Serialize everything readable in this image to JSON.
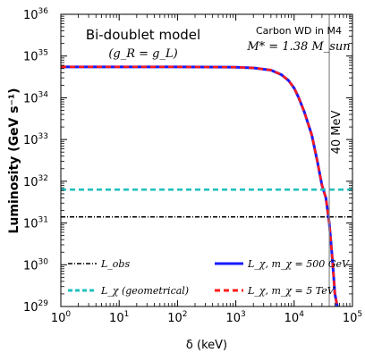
{
  "chart_data": {
    "type": "line",
    "title": "Bi-doublet model",
    "subtitle": "(g_R = g_L)",
    "xlabel": "δ (keV)",
    "ylabel": "Luminosity (GeV s⁻¹)",
    "x_scale": "log",
    "y_scale": "log",
    "xlim": [
      1,
      100000
    ],
    "ylim": [
      1e+29,
      1e+36
    ],
    "x_ticks": [
      {
        "base": "10",
        "exp": "0",
        "value": 1
      },
      {
        "base": "10",
        "exp": "1",
        "value": 10
      },
      {
        "base": "10",
        "exp": "2",
        "value": 100
      },
      {
        "base": "10",
        "exp": "3",
        "value": 1000
      },
      {
        "base": "10",
        "exp": "4",
        "value": 10000
      },
      {
        "base": "10",
        "exp": "5",
        "value": 100000
      }
    ],
    "y_ticks": [
      {
        "base": "10",
        "exp": "29",
        "value": 1e+29
      },
      {
        "base": "10",
        "exp": "30",
        "value": 1e+30
      },
      {
        "base": "10",
        "exp": "31",
        "value": 1e+31
      },
      {
        "base": "10",
        "exp": "32",
        "value": 1e+32
      },
      {
        "base": "10",
        "exp": "33",
        "value": 1e+33
      },
      {
        "base": "10",
        "exp": "34",
        "value": 1e+34
      },
      {
        "base": "10",
        "exp": "35",
        "value": 1e+35
      },
      {
        "base": "10",
        "exp": "36",
        "value": 1e+36
      }
    ],
    "annotations": {
      "top_right_line1": "Carbon WD in M4",
      "top_right_line2": "M* = 1.38 M_sun",
      "vline_label": "40 MeV",
      "vline_x": 40000
    },
    "series": [
      {
        "name": "L_obs",
        "style": "dash-dot",
        "color": "#000000",
        "x": [
          1,
          100000
        ],
        "y": [
          1.4e+31,
          1.4e+31
        ]
      },
      {
        "name": "L_χ (geometrical)",
        "style": "dashed",
        "color": "#20c0c0",
        "x": [
          1,
          100000
        ],
        "y": [
          6.3e+31,
          6.3e+31
        ]
      },
      {
        "name": "L_χ, m_χ = 500 GeV",
        "style": "solid",
        "color": "#1a1aff",
        "x": [
          1,
          10,
          100,
          1000,
          2000,
          4000,
          6000,
          8000,
          10000,
          12000,
          15000,
          20000,
          25000,
          28000,
          30000,
          32000,
          35000,
          40000,
          45000,
          50000,
          55000
        ],
        "y": [
          5.5e+34,
          5.5e+34,
          5.5e+34,
          5.4e+34,
          5.2e+34,
          4.6e+34,
          3.6e+34,
          2.6e+34,
          1.7e+34,
          1e+34,
          4.5e+33,
          1.3e+33,
          3e+32,
          1.3e+32,
          8e+31,
          6e+31,
          4e+31,
          1e+31,
          1.5e+30,
          2e+29,
          1e+29
        ]
      },
      {
        "name": "L_χ, m_χ = 5 TeV",
        "style": "dashed",
        "color": "#ff1a1a",
        "x": [
          1,
          10,
          100,
          1000,
          2000,
          4000,
          6000,
          8000,
          10000,
          12000,
          15000,
          20000,
          25000,
          28000,
          30000,
          32000,
          35000,
          40000,
          45000,
          50000,
          55000
        ],
        "y": [
          5.5e+34,
          5.5e+34,
          5.5e+34,
          5.4e+34,
          5.2e+34,
          4.6e+34,
          3.6e+34,
          2.6e+34,
          1.7e+34,
          1e+34,
          4.5e+33,
          1.3e+33,
          3e+32,
          1.3e+32,
          8e+31,
          6e+31,
          4e+31,
          1e+31,
          1.5e+30,
          2e+29,
          1e+29
        ]
      }
    ],
    "legend": {
      "placement": "bottom",
      "entries": [
        {
          "label": "L_obs",
          "style": "dash-dot",
          "color": "#000000"
        },
        {
          "label": "L_χ, m_χ = 500 GeV",
          "style": "solid",
          "color": "#1a1aff"
        },
        {
          "label": "L_χ (geometrical)",
          "style": "dashed",
          "color": "#20c0c0"
        },
        {
          "label": "L_χ, m_χ = 5 TeV",
          "style": "dashed",
          "color": "#ff1a1a"
        }
      ]
    }
  }
}
